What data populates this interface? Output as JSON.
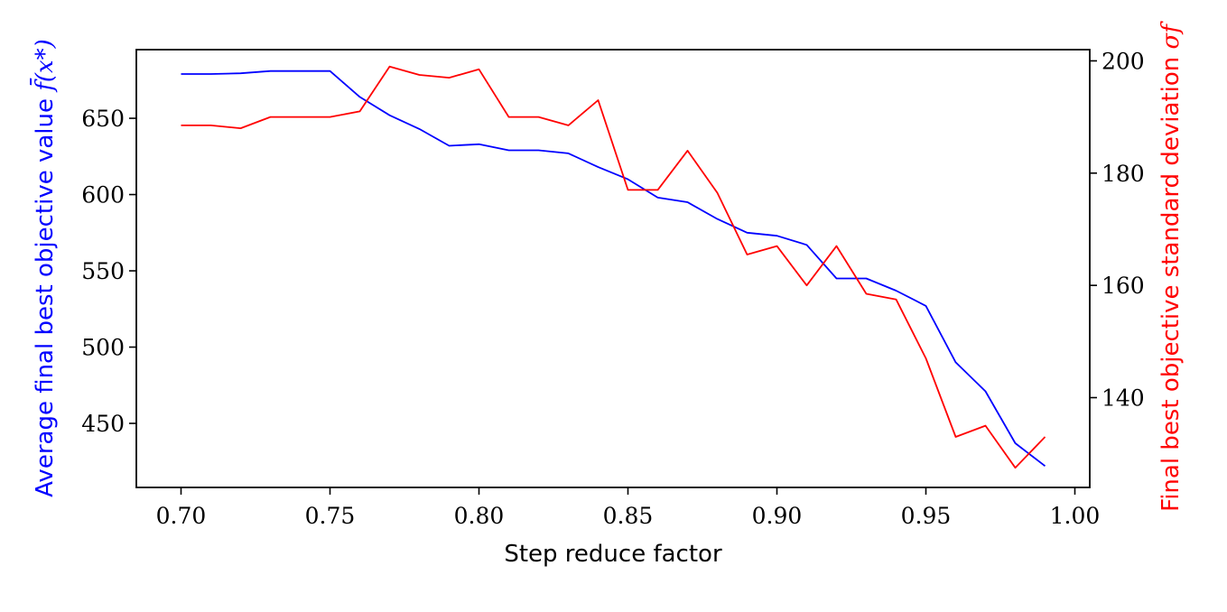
{
  "chart_data": {
    "type": "line",
    "xlabel": "Step reduce factor",
    "ylabel_left": {
      "text": "Average final best objective value ",
      "math": "f̄(x*)",
      "color": "#0000ff"
    },
    "ylabel_right": {
      "text": "Final best objective standard deviation ",
      "math": "σf",
      "color": "#ff0000"
    },
    "xlim": [
      0.685,
      1.005
    ],
    "ylim_left": [
      408,
      695
    ],
    "ylim_right": [
      124,
      202
    ],
    "xticks": [
      0.7,
      0.75,
      0.8,
      0.85,
      0.9,
      0.95,
      1.0
    ],
    "xtick_labels": [
      "0.70",
      "0.75",
      "0.80",
      "0.85",
      "0.90",
      "0.95",
      "1.00"
    ],
    "yticks_left": [
      450,
      500,
      550,
      600,
      650
    ],
    "yticks_left_labels": [
      "450",
      "500",
      "550",
      "600",
      "650"
    ],
    "yticks_right": [
      140,
      160,
      180,
      200
    ],
    "yticks_right_labels": [
      "140",
      "160",
      "180",
      "200"
    ],
    "grid": false,
    "x": [
      0.7,
      0.71,
      0.72,
      0.73,
      0.74,
      0.75,
      0.76,
      0.77,
      0.78,
      0.79,
      0.8,
      0.81,
      0.82,
      0.83,
      0.84,
      0.85,
      0.86,
      0.87,
      0.88,
      0.89,
      0.9,
      0.91,
      0.92,
      0.93,
      0.94,
      0.95,
      0.96,
      0.97,
      0.98,
      0.99
    ],
    "series": [
      {
        "axis": "left",
        "color": "#0000ff",
        "values": [
          679,
          679,
          679.5,
          681,
          681,
          681,
          664,
          652,
          643,
          632,
          633,
          629,
          629,
          627,
          618,
          610,
          598,
          595,
          584,
          575,
          573,
          567,
          545,
          545,
          537,
          527,
          490,
          471,
          437,
          422
        ]
      },
      {
        "axis": "right",
        "color": "#ff0000",
        "values": [
          188.5,
          188.5,
          188,
          190,
          190,
          190,
          191,
          199,
          197.5,
          197,
          198.5,
          190,
          190,
          188.5,
          193,
          177,
          177,
          184,
          176.5,
          165.5,
          167,
          160,
          167,
          158.5,
          157.5,
          147,
          133,
          135,
          127.5,
          133
        ]
      }
    ]
  }
}
